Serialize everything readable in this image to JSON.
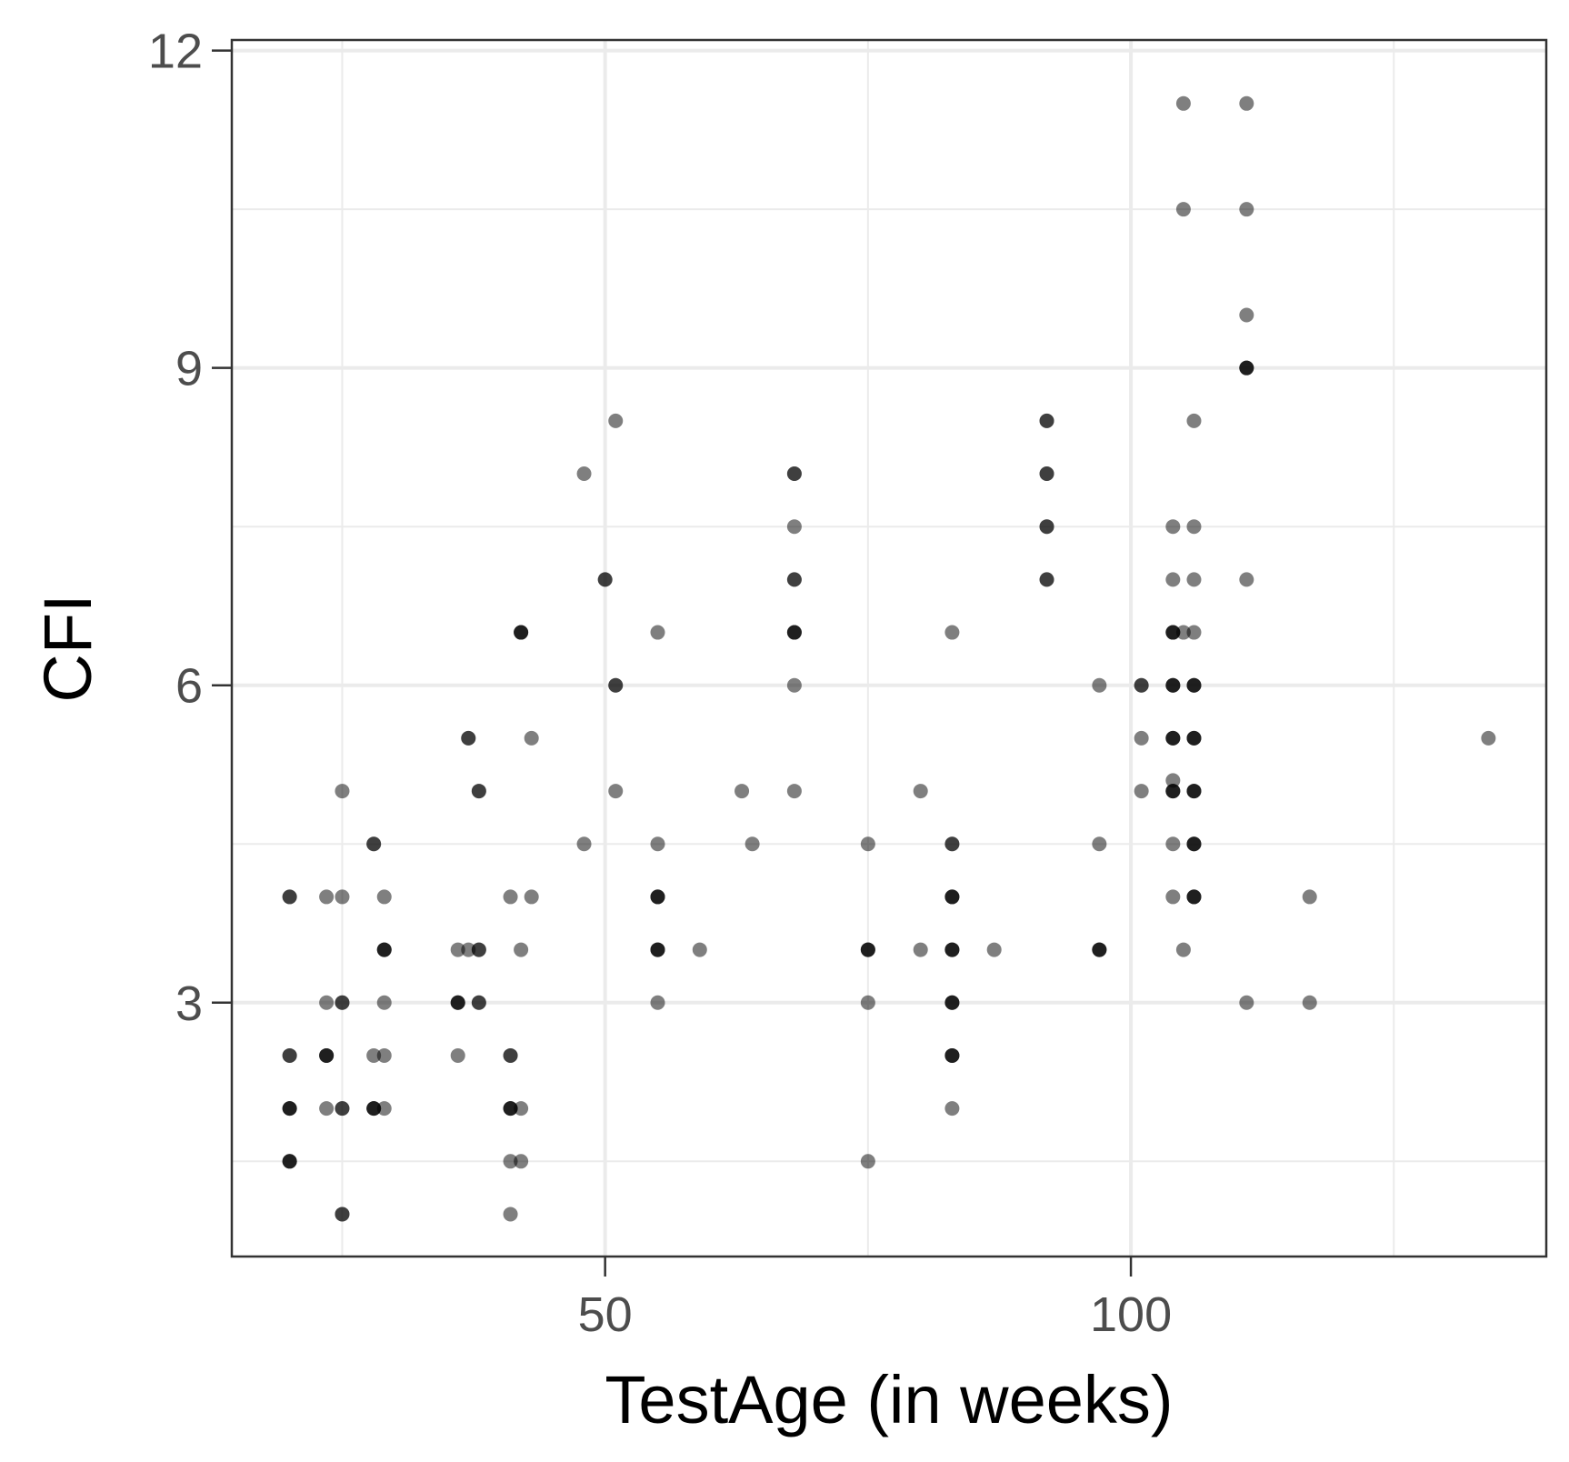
{
  "chart_data": {
    "type": "scatter",
    "title": "",
    "xlabel": "TestAge (in weeks)",
    "ylabel": "CFI",
    "xlim": [
      14.5,
      139.5
    ],
    "ylim": [
      0.6,
      12.1
    ],
    "x_ticks": [
      50,
      100
    ],
    "x_tick_labels": [
      "50",
      "100"
    ],
    "x_minor_gridlines": [
      25,
      75,
      125
    ],
    "y_ticks": [
      3,
      6,
      9,
      12
    ],
    "y_tick_labels": [
      "3",
      "6",
      "9",
      "12"
    ],
    "y_minor_gridlines": [
      1.5,
      4.5,
      7.5,
      10.5
    ],
    "grid": true,
    "point_color": "#000000",
    "point_opacity": 0.5,
    "points": [
      {
        "x": 20,
        "y": 4
      },
      {
        "x": 20,
        "y": 4
      },
      {
        "x": 20,
        "y": 2.5
      },
      {
        "x": 20,
        "y": 2.5
      },
      {
        "x": 20,
        "y": 2
      },
      {
        "x": 20,
        "y": 2
      },
      {
        "x": 20,
        "y": 2
      },
      {
        "x": 20,
        "y": 1.5
      },
      {
        "x": 20,
        "y": 1.5
      },
      {
        "x": 20,
        "y": 1.5
      },
      {
        "x": 23.5,
        "y": 4
      },
      {
        "x": 23.5,
        "y": 3
      },
      {
        "x": 23.5,
        "y": 2.5
      },
      {
        "x": 23.5,
        "y": 2.5
      },
      {
        "x": 23.5,
        "y": 2.5
      },
      {
        "x": 23.5,
        "y": 2
      },
      {
        "x": 25,
        "y": 5
      },
      {
        "x": 25,
        "y": 4
      },
      {
        "x": 25,
        "y": 3
      },
      {
        "x": 25,
        "y": 3
      },
      {
        "x": 25,
        "y": 2
      },
      {
        "x": 25,
        "y": 2
      },
      {
        "x": 25,
        "y": 1
      },
      {
        "x": 25,
        "y": 1
      },
      {
        "x": 28,
        "y": 4.5
      },
      {
        "x": 28,
        "y": 4.5
      },
      {
        "x": 28,
        "y": 2.5
      },
      {
        "x": 28,
        "y": 2
      },
      {
        "x": 28,
        "y": 2
      },
      {
        "x": 28,
        "y": 2
      },
      {
        "x": 29,
        "y": 4
      },
      {
        "x": 29,
        "y": 3.5
      },
      {
        "x": 29,
        "y": 3.5
      },
      {
        "x": 29,
        "y": 3.5
      },
      {
        "x": 29,
        "y": 3
      },
      {
        "x": 29,
        "y": 2.5
      },
      {
        "x": 29,
        "y": 2
      },
      {
        "x": 36,
        "y": 3.5
      },
      {
        "x": 36,
        "y": 3
      },
      {
        "x": 36,
        "y": 3
      },
      {
        "x": 36,
        "y": 3
      },
      {
        "x": 36,
        "y": 2.5
      },
      {
        "x": 37,
        "y": 5.5
      },
      {
        "x": 37,
        "y": 5.5
      },
      {
        "x": 37,
        "y": 3.5
      },
      {
        "x": 38,
        "y": 5
      },
      {
        "x": 38,
        "y": 5
      },
      {
        "x": 38,
        "y": 3.5
      },
      {
        "x": 38,
        "y": 3.5
      },
      {
        "x": 38,
        "y": 3
      },
      {
        "x": 38,
        "y": 3
      },
      {
        "x": 41,
        "y": 4
      },
      {
        "x": 41,
        "y": 2.5
      },
      {
        "x": 41,
        "y": 2.5
      },
      {
        "x": 41,
        "y": 2
      },
      {
        "x": 41,
        "y": 2
      },
      {
        "x": 41,
        "y": 2
      },
      {
        "x": 41,
        "y": 1.5
      },
      {
        "x": 41,
        "y": 1
      },
      {
        "x": 42,
        "y": 6.5
      },
      {
        "x": 42,
        "y": 6.5
      },
      {
        "x": 42,
        "y": 6.5
      },
      {
        "x": 42,
        "y": 3.5
      },
      {
        "x": 42,
        "y": 2
      },
      {
        "x": 42,
        "y": 1.5
      },
      {
        "x": 43,
        "y": 5.5
      },
      {
        "x": 43,
        "y": 4
      },
      {
        "x": 48,
        "y": 8
      },
      {
        "x": 48,
        "y": 4.5
      },
      {
        "x": 50,
        "y": 7
      },
      {
        "x": 50,
        "y": 7
      },
      {
        "x": 51,
        "y": 8.5
      },
      {
        "x": 51,
        "y": 6
      },
      {
        "x": 51,
        "y": 6
      },
      {
        "x": 51,
        "y": 5
      },
      {
        "x": 55,
        "y": 6.5
      },
      {
        "x": 55,
        "y": 4.5
      },
      {
        "x": 55,
        "y": 4
      },
      {
        "x": 55,
        "y": 4
      },
      {
        "x": 55,
        "y": 4
      },
      {
        "x": 55,
        "y": 3.5
      },
      {
        "x": 55,
        "y": 3.5
      },
      {
        "x": 55,
        "y": 3.5
      },
      {
        "x": 55,
        "y": 3
      },
      {
        "x": 59,
        "y": 3.5
      },
      {
        "x": 63,
        "y": 5
      },
      {
        "x": 64,
        "y": 4.5
      },
      {
        "x": 68,
        "y": 8
      },
      {
        "x": 68,
        "y": 8
      },
      {
        "x": 68,
        "y": 7.5
      },
      {
        "x": 68,
        "y": 7
      },
      {
        "x": 68,
        "y": 7
      },
      {
        "x": 68,
        "y": 6.5
      },
      {
        "x": 68,
        "y": 6.5
      },
      {
        "x": 68,
        "y": 6.5
      },
      {
        "x": 68,
        "y": 6
      },
      {
        "x": 68,
        "y": 5
      },
      {
        "x": 75,
        "y": 4.5
      },
      {
        "x": 75,
        "y": 3.5
      },
      {
        "x": 75,
        "y": 3.5
      },
      {
        "x": 75,
        "y": 3.5
      },
      {
        "x": 75,
        "y": 3
      },
      {
        "x": 75,
        "y": 1.5
      },
      {
        "x": 80,
        "y": 5
      },
      {
        "x": 80,
        "y": 3.5
      },
      {
        "x": 83,
        "y": 6.5
      },
      {
        "x": 83,
        "y": 4.5
      },
      {
        "x": 83,
        "y": 4.5
      },
      {
        "x": 83,
        "y": 4
      },
      {
        "x": 83,
        "y": 4
      },
      {
        "x": 83,
        "y": 4
      },
      {
        "x": 83,
        "y": 3.5
      },
      {
        "x": 83,
        "y": 3.5
      },
      {
        "x": 83,
        "y": 3.5
      },
      {
        "x": 83,
        "y": 3
      },
      {
        "x": 83,
        "y": 3
      },
      {
        "x": 83,
        "y": 3
      },
      {
        "x": 83,
        "y": 2.5
      },
      {
        "x": 83,
        "y": 2.5
      },
      {
        "x": 83,
        "y": 2.5
      },
      {
        "x": 83,
        "y": 2
      },
      {
        "x": 87,
        "y": 3.5
      },
      {
        "x": 92,
        "y": 8.5
      },
      {
        "x": 92,
        "y": 8.5
      },
      {
        "x": 92,
        "y": 8
      },
      {
        "x": 92,
        "y": 8
      },
      {
        "x": 92,
        "y": 7.5
      },
      {
        "x": 92,
        "y": 7.5
      },
      {
        "x": 92,
        "y": 7
      },
      {
        "x": 92,
        "y": 7
      },
      {
        "x": 97,
        "y": 6
      },
      {
        "x": 97,
        "y": 4.5
      },
      {
        "x": 97,
        "y": 3.5
      },
      {
        "x": 97,
        "y": 3.5
      },
      {
        "x": 97,
        "y": 3.5
      },
      {
        "x": 101,
        "y": 6
      },
      {
        "x": 101,
        "y": 6
      },
      {
        "x": 101,
        "y": 5.5
      },
      {
        "x": 101,
        "y": 5
      },
      {
        "x": 104,
        "y": 7.5
      },
      {
        "x": 104,
        "y": 7
      },
      {
        "x": 104,
        "y": 6.5
      },
      {
        "x": 104,
        "y": 6.5
      },
      {
        "x": 104,
        "y": 6.5
      },
      {
        "x": 104,
        "y": 6
      },
      {
        "x": 104,
        "y": 6
      },
      {
        "x": 104,
        "y": 6
      },
      {
        "x": 104,
        "y": 5.5
      },
      {
        "x": 104,
        "y": 5.5
      },
      {
        "x": 104,
        "y": 5.5
      },
      {
        "x": 104,
        "y": 5.1
      },
      {
        "x": 104,
        "y": 5
      },
      {
        "x": 104,
        "y": 5
      },
      {
        "x": 104,
        "y": 5
      },
      {
        "x": 104,
        "y": 4.5
      },
      {
        "x": 104,
        "y": 4
      },
      {
        "x": 105,
        "y": 11.5
      },
      {
        "x": 105,
        "y": 10.5
      },
      {
        "x": 105,
        "y": 6.5
      },
      {
        "x": 105,
        "y": 3.5
      },
      {
        "x": 106,
        "y": 8.5
      },
      {
        "x": 106,
        "y": 7.5
      },
      {
        "x": 106,
        "y": 7
      },
      {
        "x": 106,
        "y": 6.5
      },
      {
        "x": 106,
        "y": 6
      },
      {
        "x": 106,
        "y": 6
      },
      {
        "x": 106,
        "y": 6
      },
      {
        "x": 106,
        "y": 5.5
      },
      {
        "x": 106,
        "y": 5.5
      },
      {
        "x": 106,
        "y": 5.5
      },
      {
        "x": 106,
        "y": 5
      },
      {
        "x": 106,
        "y": 5
      },
      {
        "x": 106,
        "y": 5
      },
      {
        "x": 106,
        "y": 4.5
      },
      {
        "x": 106,
        "y": 4.5
      },
      {
        "x": 106,
        "y": 4.5
      },
      {
        "x": 106,
        "y": 4
      },
      {
        "x": 106,
        "y": 4
      },
      {
        "x": 106,
        "y": 4
      },
      {
        "x": 111,
        "y": 11.5
      },
      {
        "x": 111,
        "y": 10.5
      },
      {
        "x": 111,
        "y": 9.5
      },
      {
        "x": 111,
        "y": 9
      },
      {
        "x": 111,
        "y": 9
      },
      {
        "x": 111,
        "y": 9
      },
      {
        "x": 111,
        "y": 7
      },
      {
        "x": 111,
        "y": 3
      },
      {
        "x": 117,
        "y": 4
      },
      {
        "x": 117,
        "y": 3
      },
      {
        "x": 134,
        "y": 5.5
      }
    ]
  }
}
